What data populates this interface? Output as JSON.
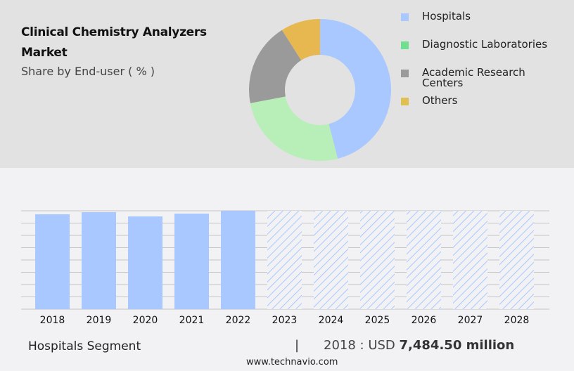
{
  "header": {
    "title": "Clinical Chemistry Analyzers Market",
    "subtitle": "Share by End-user ( % )"
  },
  "chart_data": [
    {
      "type": "pie",
      "variant": "donut",
      "title": "Share by End-user ( % )",
      "legend_position": "right",
      "labels": [
        "Hospitals",
        "Diagnostic Laboratories",
        "Academic Research Centers",
        "Others"
      ],
      "values": [
        46,
        26,
        19,
        9
      ],
      "colors": [
        "#a8c8ff",
        "#b8eeb8",
        "#9a9a9a",
        "#e8b850"
      ],
      "legend_colors": [
        "#a8c8ff",
        "#70e090",
        "#9a9a9a",
        "#e0c050"
      ]
    },
    {
      "type": "bar",
      "title": "Hospitals Segment",
      "categories": [
        "2018",
        "2019",
        "2020",
        "2021",
        "2022",
        "2023",
        "2024",
        "2025",
        "2026",
        "2027",
        "2028"
      ],
      "values": [
        7484.5,
        7650,
        7318,
        7540,
        7762,
        null,
        null,
        null,
        null,
        null,
        null
      ],
      "forecast": [
        false,
        false,
        false,
        false,
        false,
        true,
        true,
        true,
        true,
        true,
        true
      ],
      "ylim": [
        0,
        7762
      ],
      "grid": true,
      "xlabel": "",
      "ylabel": "",
      "bar_color": "#a8c8ff"
    }
  ],
  "footer": {
    "segment_label": "Hospitals Segment",
    "separator": "|",
    "value_prefix": "2018 : USD",
    "value_bold": "7,484.50 million",
    "url": "www.technavio.com"
  }
}
